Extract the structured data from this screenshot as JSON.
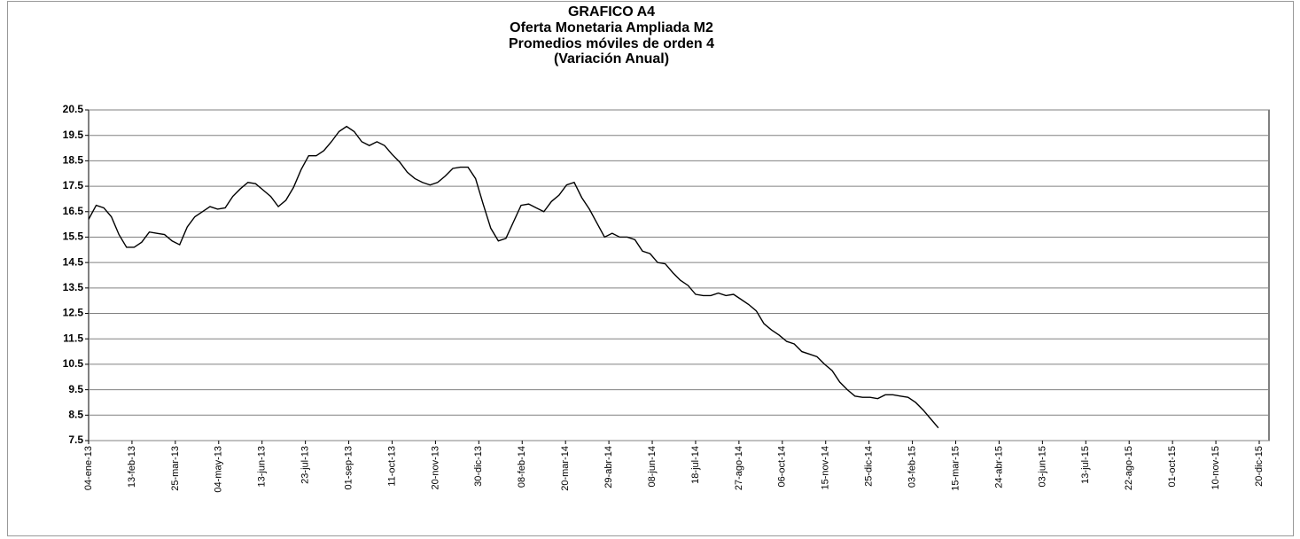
{
  "chart_data": {
    "type": "line",
    "title": [
      "GRAFICO A4",
      "Oferta Monetaria Ampliada M2",
      "Promedios móviles de orden 4",
      "(Variación Anual)"
    ],
    "x": [
      "2013-01-04",
      "2013-01-11",
      "2013-01-18",
      "2013-01-25",
      "2013-02-01",
      "2013-02-08",
      "2013-02-15",
      "2013-02-22",
      "2013-03-01",
      "2013-03-08",
      "2013-03-15",
      "2013-03-22",
      "2013-03-29",
      "2013-04-05",
      "2013-04-12",
      "2013-04-19",
      "2013-04-26",
      "2013-05-03",
      "2013-05-10",
      "2013-05-17",
      "2013-05-24",
      "2013-05-31",
      "2013-06-07",
      "2013-06-14",
      "2013-06-21",
      "2013-06-28",
      "2013-07-05",
      "2013-07-12",
      "2013-07-19",
      "2013-07-26",
      "2013-08-02",
      "2013-08-09",
      "2013-08-16",
      "2013-08-23",
      "2013-08-30",
      "2013-09-06",
      "2013-09-13",
      "2013-09-20",
      "2013-09-27",
      "2013-10-04",
      "2013-10-11",
      "2013-10-18",
      "2013-10-25",
      "2013-11-01",
      "2013-11-08",
      "2013-11-15",
      "2013-11-22",
      "2013-11-29",
      "2013-12-06",
      "2013-12-13",
      "2013-12-20",
      "2013-12-27",
      "2014-01-03",
      "2014-01-10",
      "2014-01-17",
      "2014-01-24",
      "2014-01-31",
      "2014-02-07",
      "2014-02-14",
      "2014-02-21",
      "2014-02-28",
      "2014-03-07",
      "2014-03-14",
      "2014-03-21",
      "2014-03-28",
      "2014-04-04",
      "2014-04-11",
      "2014-04-18",
      "2014-04-25",
      "2014-05-02",
      "2014-05-09",
      "2014-05-16",
      "2014-05-23",
      "2014-05-30",
      "2014-06-06",
      "2014-06-13",
      "2014-06-20",
      "2014-06-27",
      "2014-07-04",
      "2014-07-11",
      "2014-07-18",
      "2014-07-25",
      "2014-08-01",
      "2014-08-08",
      "2014-08-15",
      "2014-08-22",
      "2014-08-29",
      "2014-09-05",
      "2014-09-12",
      "2014-09-19",
      "2014-09-26",
      "2014-10-03",
      "2014-10-10",
      "2014-10-17",
      "2014-10-24",
      "2014-10-31",
      "2014-11-07",
      "2014-11-14",
      "2014-11-21",
      "2014-11-28",
      "2014-12-05",
      "2014-12-12",
      "2014-12-19",
      "2014-12-26",
      "2015-01-02",
      "2015-01-09",
      "2015-01-16",
      "2015-01-23",
      "2015-01-30",
      "2015-02-06",
      "2015-02-13",
      "2015-02-20",
      "2015-02-27"
    ],
    "values": [
      16.2,
      16.75,
      16.65,
      16.3,
      15.6,
      15.1,
      15.1,
      15.3,
      15.7,
      15.65,
      15.6,
      15.35,
      15.2,
      15.9,
      16.3,
      16.5,
      16.7,
      16.6,
      16.65,
      17.1,
      17.4,
      17.65,
      17.6,
      17.35,
      17.1,
      16.7,
      16.95,
      17.45,
      18.15,
      18.7,
      18.7,
      18.9,
      19.25,
      19.65,
      19.85,
      19.65,
      19.25,
      19.1,
      19.25,
      19.1,
      18.75,
      18.45,
      18.05,
      17.8,
      17.65,
      17.55,
      17.65,
      17.9,
      18.2,
      18.25,
      18.25,
      17.8,
      16.8,
      15.85,
      15.35,
      15.45,
      16.1,
      16.75,
      16.8,
      16.65,
      16.5,
      16.9,
      17.15,
      17.55,
      17.65,
      17.05,
      16.6,
      16.05,
      15.5,
      15.65,
      15.5,
      15.5,
      15.4,
      14.95,
      14.85,
      14.5,
      14.45,
      14.1,
      13.8,
      13.6,
      13.25,
      13.2,
      13.2,
      13.3,
      13.2,
      13.25,
      13.05,
      12.85,
      12.6,
      12.1,
      11.85,
      11.65,
      11.4,
      11.3,
      11.0,
      10.9,
      10.8,
      10.5,
      10.25,
      9.8,
      9.5,
      9.25,
      9.2,
      9.2,
      9.15,
      9.3,
      9.3,
      9.25,
      9.2,
      9.0,
      8.7,
      8.35,
      8.0
    ],
    "color": "#000000",
    "xlim": [
      "2013-01-04",
      "2015-12-29"
    ],
    "xticks": [
      {
        "value": "2013-01-04",
        "label": "04-ene-13"
      },
      {
        "value": "2013-02-13",
        "label": "13-feb-13"
      },
      {
        "value": "2013-03-25",
        "label": "25-mar-13"
      },
      {
        "value": "2013-05-04",
        "label": "04-may-13"
      },
      {
        "value": "2013-06-13",
        "label": "13-jun-13"
      },
      {
        "value": "2013-07-23",
        "label": "23-jul-13"
      },
      {
        "value": "2013-09-01",
        "label": "01-sep-13"
      },
      {
        "value": "2013-10-11",
        "label": "11-oct-13"
      },
      {
        "value": "2013-11-20",
        "label": "20-nov-13"
      },
      {
        "value": "2013-12-30",
        "label": "30-dic-13"
      },
      {
        "value": "2014-02-08",
        "label": "08-feb-14"
      },
      {
        "value": "2014-03-20",
        "label": "20-mar-14"
      },
      {
        "value": "2014-04-29",
        "label": "29-abr-14"
      },
      {
        "value": "2014-06-08",
        "label": "08-jun-14"
      },
      {
        "value": "2014-07-18",
        "label": "18-jul-14"
      },
      {
        "value": "2014-08-27",
        "label": "27-ago-14"
      },
      {
        "value": "2014-10-06",
        "label": "06-oct-14"
      },
      {
        "value": "2014-11-15",
        "label": "15-nov-14"
      },
      {
        "value": "2014-12-25",
        "label": "25-dic-14"
      },
      {
        "value": "2015-02-03",
        "label": "03-feb-15"
      },
      {
        "value": "2015-03-15",
        "label": "15-mar-15"
      },
      {
        "value": "2015-04-24",
        "label": "24-abr-15"
      },
      {
        "value": "2015-06-03",
        "label": "03-jun-15"
      },
      {
        "value": "2015-07-13",
        "label": "13-jul-15"
      },
      {
        "value": "2015-08-22",
        "label": "22-ago-15"
      },
      {
        "value": "2015-10-01",
        "label": "01-oct-15"
      },
      {
        "value": "2015-11-10",
        "label": "10-nov-15"
      },
      {
        "value": "2015-12-20",
        "label": "20-dic-15"
      }
    ],
    "ylim": [
      7.5,
      20.5
    ],
    "yticks": [
      7.5,
      8.5,
      9.5,
      10.5,
      11.5,
      12.5,
      13.5,
      14.5,
      15.5,
      16.5,
      17.5,
      18.5,
      19.5,
      20.5
    ],
    "grid": true
  }
}
